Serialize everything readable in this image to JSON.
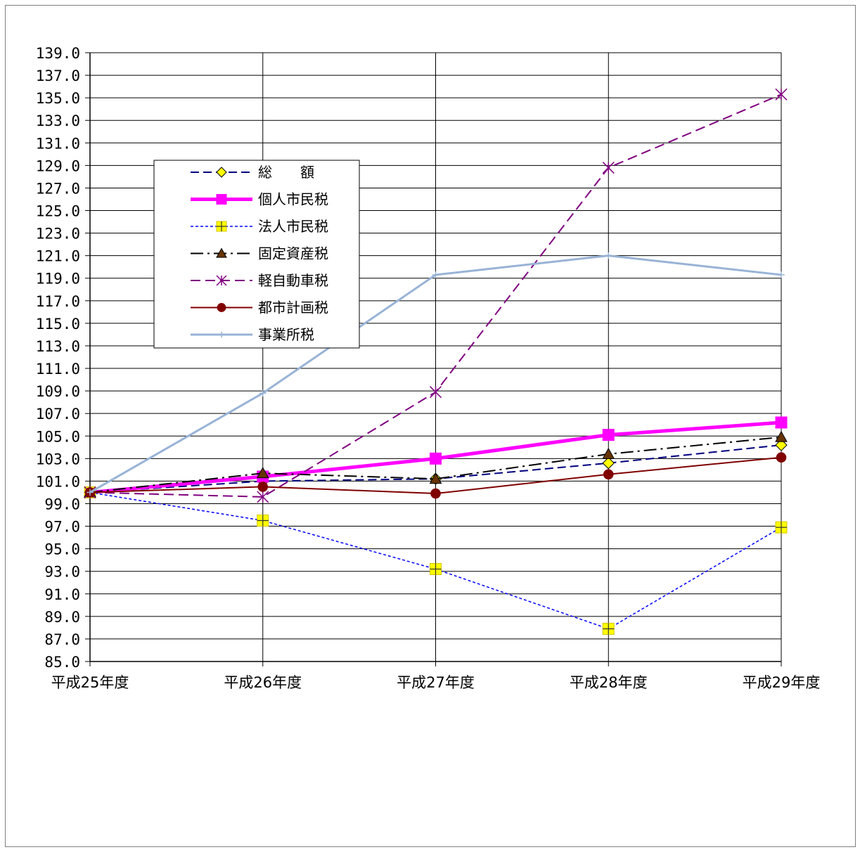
{
  "chart_data": {
    "type": "line",
    "title": "",
    "xlabel": "",
    "ylabel": "",
    "ylim": [
      85.0,
      139.0
    ],
    "y_ticks": [
      "85.0",
      "87.0",
      "89.0",
      "91.0",
      "93.0",
      "95.0",
      "97.0",
      "99.0",
      "101.0",
      "103.0",
      "105.0",
      "107.0",
      "109.0",
      "111.0",
      "113.0",
      "115.0",
      "117.0",
      "119.0",
      "121.0",
      "123.0",
      "125.0",
      "127.0",
      "129.0",
      "131.0",
      "133.0",
      "135.0",
      "137.0",
      "139.0"
    ],
    "categories": [
      "平成25年度",
      "平成26年度",
      "平成27年度",
      "平成28年度",
      "平成29年度"
    ],
    "grid": true,
    "legend_position": "upper-left inside plot",
    "series": [
      {
        "name": "総　　額",
        "values": [
          100.0,
          101.0,
          101.2,
          102.6,
          104.2
        ],
        "color": "#00007f",
        "dash": "12,6",
        "marker": "diamond",
        "marker_color": "#ffff00",
        "width": 2
      },
      {
        "name": "個人市民税",
        "values": [
          100.0,
          101.4,
          103.0,
          105.1,
          106.2
        ],
        "color": "#ff00ff",
        "dash": "",
        "marker": "square",
        "marker_color": "#ff00ff",
        "width": 5
      },
      {
        "name": "法人市民税",
        "values": [
          100.0,
          97.5,
          93.2,
          87.9,
          96.9
        ],
        "color": "#0000ff",
        "dash": "4,3",
        "marker": "plus-square",
        "marker_color": "#ffff00",
        "width": 1.5
      },
      {
        "name": "固定資産税",
        "values": [
          100.0,
          101.7,
          101.2,
          103.4,
          104.9
        ],
        "color": "#000000",
        "dash": "18,6,3,6",
        "marker": "triangle",
        "marker_color": "#663300",
        "width": 2
      },
      {
        "name": "軽自動車税",
        "values": [
          100.0,
          99.6,
          108.9,
          128.8,
          135.3
        ],
        "color": "#800080",
        "dash": "14,7",
        "marker": "asterisk",
        "marker_color": "#800080",
        "width": 2
      },
      {
        "name": "都市計画税",
        "values": [
          100.0,
          100.5,
          99.9,
          101.6,
          103.1
        ],
        "color": "#800000",
        "dash": "",
        "marker": "circle",
        "marker_color": "#800000",
        "width": 2
      },
      {
        "name": "事業所税",
        "values": [
          100.0,
          108.8,
          119.3,
          121.0,
          119.3
        ],
        "color": "#99b3d6",
        "dash": "",
        "marker": "plus",
        "marker_color": "#99b3d6",
        "width": 3
      }
    ]
  }
}
